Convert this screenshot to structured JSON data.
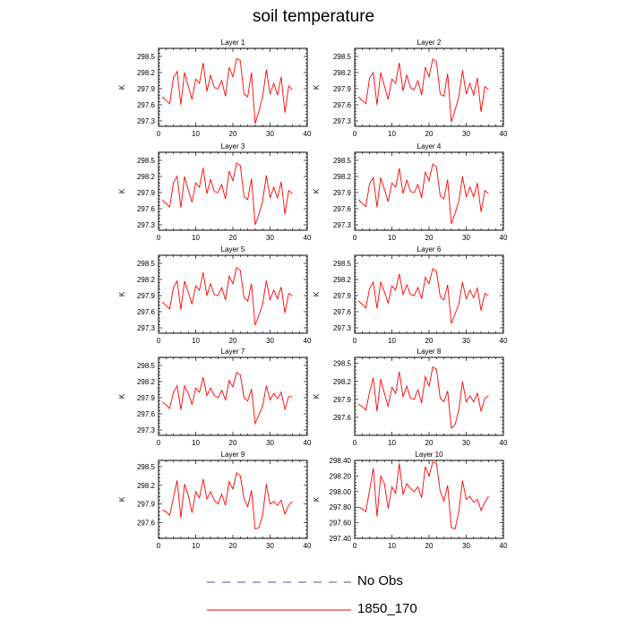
{
  "title": "soil temperature",
  "colors": {
    "model_line": "#ff0000",
    "obs_line": "#5050a0",
    "axis": "#000000"
  },
  "legend": [
    {
      "label": "No Obs",
      "style": "dashed",
      "color": "#5050a0"
    },
    {
      "label": "1850_170",
      "style": "solid",
      "color": "#ff0000"
    }
  ],
  "chart_data": [
    {
      "type": "line",
      "title": "Layer 1",
      "ylabel": "K",
      "xlim": [
        0,
        40
      ],
      "ylim": [
        297.2,
        298.65
      ],
      "xticks": [
        "0",
        "10",
        "20",
        "30",
        "40"
      ],
      "yticks": [
        "297.3",
        "297.6",
        "297.9",
        "298.2",
        "298.5"
      ],
      "series": [
        {
          "x": [
            1,
            2,
            3,
            4,
            5,
            6,
            7,
            8,
            9,
            10,
            11,
            12,
            13,
            14,
            15,
            16,
            17,
            18,
            19,
            20,
            21,
            22,
            23,
            24,
            25,
            26,
            27,
            28,
            29,
            30,
            31,
            32,
            33,
            34,
            35,
            36
          ],
          "values": [
            297.75,
            297.68,
            297.62,
            298.1,
            298.22,
            297.6,
            298.2,
            297.95,
            297.7,
            298.08,
            298.0,
            298.38,
            297.85,
            298.15,
            297.92,
            297.9,
            298.05,
            297.76,
            298.3,
            298.12,
            298.46,
            298.42,
            297.8,
            297.75,
            298.2,
            297.25,
            297.48,
            297.75,
            298.25,
            297.8,
            298.0,
            297.78,
            298.12,
            297.45,
            297.95,
            297.88
          ]
        }
      ]
    },
    {
      "type": "line",
      "title": "Layer 2",
      "ylabel": "K",
      "xlim": [
        0,
        40
      ],
      "ylim": [
        297.2,
        298.65
      ],
      "xticks": [
        "0",
        "10",
        "20",
        "30",
        "40"
      ],
      "yticks": [
        "297.3",
        "297.6",
        "297.9",
        "298.2",
        "298.5"
      ],
      "series": [
        {
          "x": [
            1,
            2,
            3,
            4,
            5,
            6,
            7,
            8,
            9,
            10,
            11,
            12,
            13,
            14,
            15,
            16,
            17,
            18,
            19,
            20,
            21,
            22,
            23,
            24,
            25,
            26,
            27,
            28,
            29,
            30,
            31,
            32,
            33,
            34,
            35,
            36
          ],
          "values": [
            297.75,
            297.68,
            297.62,
            298.1,
            298.2,
            297.6,
            298.2,
            297.95,
            297.7,
            298.08,
            298.0,
            298.38,
            297.86,
            298.15,
            297.92,
            297.88,
            298.05,
            297.78,
            298.3,
            298.12,
            298.45,
            298.4,
            297.8,
            297.76,
            298.18,
            297.28,
            297.5,
            297.75,
            298.24,
            297.8,
            298.0,
            297.78,
            298.1,
            297.47,
            297.94,
            297.88
          ]
        }
      ]
    },
    {
      "type": "line",
      "title": "Layer 3",
      "ylabel": "K",
      "xlim": [
        0,
        40
      ],
      "ylim": [
        297.2,
        298.65
      ],
      "xticks": [
        "0",
        "10",
        "20",
        "30",
        "40"
      ],
      "yticks": [
        "297.3",
        "297.6",
        "297.9",
        "298.2",
        "298.5"
      ],
      "series": [
        {
          "x": [
            1,
            2,
            3,
            4,
            5,
            6,
            7,
            8,
            9,
            10,
            11,
            12,
            13,
            14,
            15,
            16,
            17,
            18,
            19,
            20,
            21,
            22,
            23,
            24,
            25,
            26,
            27,
            28,
            29,
            30,
            31,
            32,
            33,
            34,
            35,
            36
          ],
          "values": [
            297.76,
            297.7,
            297.63,
            298.08,
            298.2,
            297.62,
            298.2,
            297.95,
            297.72,
            298.08,
            298.0,
            298.36,
            297.88,
            298.14,
            297.92,
            297.9,
            298.05,
            297.78,
            298.3,
            298.12,
            298.45,
            298.4,
            297.82,
            297.77,
            298.16,
            297.3,
            297.5,
            297.74,
            298.22,
            297.8,
            298.0,
            297.8,
            298.1,
            297.5,
            297.94,
            297.88
          ]
        }
      ]
    },
    {
      "type": "line",
      "title": "Layer 4",
      "ylabel": "K",
      "xlim": [
        0,
        40
      ],
      "ylim": [
        297.2,
        298.65
      ],
      "xticks": [
        "0",
        "10",
        "20",
        "30",
        "40"
      ],
      "yticks": [
        "297.3",
        "297.6",
        "297.9",
        "298.2",
        "298.5"
      ],
      "series": [
        {
          "x": [
            1,
            2,
            3,
            4,
            5,
            6,
            7,
            8,
            9,
            10,
            11,
            12,
            13,
            14,
            15,
            16,
            17,
            18,
            19,
            20,
            21,
            22,
            23,
            24,
            25,
            26,
            27,
            28,
            29,
            30,
            31,
            32,
            33,
            34,
            35,
            36
          ],
          "values": [
            297.77,
            297.7,
            297.64,
            298.07,
            298.18,
            297.63,
            298.18,
            297.96,
            297.73,
            298.08,
            298.0,
            298.35,
            297.88,
            298.13,
            297.92,
            297.9,
            298.05,
            297.8,
            298.28,
            298.12,
            298.43,
            298.38,
            297.84,
            297.78,
            298.14,
            297.32,
            297.52,
            297.74,
            298.2,
            297.82,
            298.0,
            297.82,
            298.08,
            297.54,
            297.94,
            297.88
          ]
        }
      ]
    },
    {
      "type": "line",
      "title": "Layer 5",
      "ylabel": "K",
      "xlim": [
        0,
        40
      ],
      "ylim": [
        297.2,
        298.65
      ],
      "xticks": [
        "0",
        "10",
        "20",
        "30",
        "40"
      ],
      "yticks": [
        "297.3",
        "297.6",
        "297.9",
        "298.2",
        "298.5"
      ],
      "series": [
        {
          "x": [
            1,
            2,
            3,
            4,
            5,
            6,
            7,
            8,
            9,
            10,
            11,
            12,
            13,
            14,
            15,
            16,
            17,
            18,
            19,
            20,
            21,
            22,
            23,
            24,
            25,
            26,
            27,
            28,
            29,
            30,
            31,
            32,
            33,
            34,
            35,
            36
          ],
          "values": [
            297.78,
            297.72,
            297.65,
            298.05,
            298.17,
            297.64,
            298.17,
            297.96,
            297.74,
            298.08,
            298.0,
            298.33,
            297.9,
            298.12,
            297.92,
            297.9,
            298.05,
            297.82,
            298.26,
            298.12,
            298.42,
            298.37,
            297.86,
            297.8,
            298.12,
            297.35,
            297.54,
            297.74,
            298.18,
            297.82,
            298.0,
            297.84,
            298.06,
            297.58,
            297.94,
            297.9
          ]
        }
      ]
    },
    {
      "type": "line",
      "title": "Layer 6",
      "ylabel": "K",
      "xlim": [
        0,
        40
      ],
      "ylim": [
        297.2,
        298.65
      ],
      "xticks": [
        "0",
        "10",
        "20",
        "30",
        "40"
      ],
      "yticks": [
        "297.3",
        "297.6",
        "297.9",
        "298.2",
        "298.5"
      ],
      "series": [
        {
          "x": [
            1,
            2,
            3,
            4,
            5,
            6,
            7,
            8,
            9,
            10,
            11,
            12,
            13,
            14,
            15,
            16,
            17,
            18,
            19,
            20,
            21,
            22,
            23,
            24,
            25,
            26,
            27,
            28,
            29,
            30,
            31,
            32,
            33,
            34,
            35,
            36
          ],
          "values": [
            297.8,
            297.74,
            297.67,
            298.03,
            298.15,
            297.66,
            298.15,
            297.97,
            297.76,
            298.08,
            298.0,
            298.3,
            297.92,
            298.1,
            297.92,
            297.9,
            298.05,
            297.84,
            298.24,
            298.12,
            298.4,
            298.35,
            297.88,
            297.82,
            298.1,
            297.38,
            297.56,
            297.74,
            298.15,
            297.84,
            298.0,
            297.86,
            298.04,
            297.62,
            297.94,
            297.9
          ]
        }
      ]
    },
    {
      "type": "line",
      "title": "Layer 7",
      "ylabel": "K",
      "xlim": [
        0,
        40
      ],
      "ylim": [
        297.2,
        298.65
      ],
      "xticks": [
        "0",
        "10",
        "20",
        "30",
        "40"
      ],
      "yticks": [
        "297.3",
        "297.6",
        "297.9",
        "298.2",
        "298.5"
      ],
      "series": [
        {
          "x": [
            1,
            2,
            3,
            4,
            5,
            6,
            7,
            8,
            9,
            10,
            11,
            12,
            13,
            14,
            15,
            16,
            17,
            18,
            19,
            20,
            21,
            22,
            23,
            24,
            25,
            26,
            27,
            28,
            29,
            30,
            31,
            32,
            33,
            34,
            35,
            36
          ],
          "values": [
            297.82,
            297.77,
            297.7,
            298.0,
            298.12,
            297.68,
            298.12,
            297.98,
            297.78,
            298.08,
            298.0,
            298.28,
            297.94,
            298.08,
            297.94,
            297.9,
            298.04,
            297.86,
            298.22,
            298.1,
            298.37,
            298.32,
            297.9,
            297.84,
            298.06,
            297.42,
            297.58,
            297.74,
            298.12,
            297.86,
            297.98,
            297.88,
            298.0,
            297.68,
            297.92,
            297.92
          ]
        }
      ]
    },
    {
      "type": "line",
      "title": "Layer 8",
      "ylabel": "K",
      "xlim": [
        0,
        40
      ],
      "ylim": [
        297.3,
        298.6
      ],
      "xticks": [
        "0",
        "10",
        "20",
        "30",
        "40"
      ],
      "yticks": [
        "297.6",
        "297.9",
        "298.2",
        "298.5"
      ],
      "series": [
        {
          "x": [
            1,
            2,
            3,
            4,
            5,
            6,
            7,
            8,
            9,
            10,
            11,
            12,
            13,
            14,
            15,
            16,
            17,
            18,
            19,
            20,
            21,
            22,
            23,
            24,
            25,
            26,
            27,
            28,
            29,
            30,
            31,
            32,
            33,
            34,
            35,
            36
          ],
          "values": [
            297.82,
            297.78,
            297.72,
            298.02,
            298.26,
            297.7,
            298.24,
            298.0,
            297.78,
            298.1,
            298.0,
            298.36,
            297.94,
            298.12,
            297.92,
            297.9,
            298.06,
            297.84,
            298.28,
            298.12,
            298.44,
            298.4,
            297.92,
            297.86,
            298.04,
            297.42,
            297.48,
            297.72,
            298.2,
            297.86,
            297.96,
            297.86,
            298.0,
            297.7,
            297.92,
            297.96
          ]
        }
      ]
    },
    {
      "type": "line",
      "title": "Layer 9",
      "ylabel": "K",
      "xlim": [
        0,
        40
      ],
      "ylim": [
        297.35,
        298.6
      ],
      "xticks": [
        "0",
        "10",
        "20",
        "30",
        "40"
      ],
      "yticks": [
        "297.6",
        "297.9",
        "298.2",
        "298.5"
      ],
      "series": [
        {
          "x": [
            1,
            2,
            3,
            4,
            5,
            6,
            7,
            8,
            9,
            10,
            11,
            12,
            13,
            14,
            15,
            16,
            17,
            18,
            19,
            20,
            21,
            22,
            23,
            24,
            25,
            26,
            27,
            28,
            29,
            30,
            31,
            32,
            33,
            34,
            35,
            36
          ],
          "values": [
            297.8,
            297.78,
            297.72,
            298.0,
            298.28,
            297.68,
            298.22,
            298.04,
            297.76,
            298.1,
            298.0,
            298.3,
            297.98,
            298.1,
            297.96,
            297.9,
            298.06,
            297.88,
            298.26,
            298.14,
            298.4,
            298.35,
            297.98,
            297.86,
            298.12,
            297.5,
            297.52,
            297.72,
            298.22,
            297.9,
            297.94,
            297.88,
            297.96,
            297.74,
            297.88,
            297.94
          ]
        }
      ]
    },
    {
      "type": "line",
      "title": "Layer 10",
      "ylabel": "K",
      "xlim": [
        0,
        40
      ],
      "ylim": [
        297.4,
        298.4
      ],
      "xticks": [
        "0",
        "10",
        "20",
        "30",
        "40"
      ],
      "yticks": [
        "297.40",
        "297.60",
        "297.80",
        "298.00",
        "298.20",
        "298.40"
      ],
      "series": [
        {
          "x": [
            1,
            2,
            3,
            4,
            5,
            6,
            7,
            8,
            9,
            10,
            11,
            12,
            13,
            14,
            15,
            16,
            17,
            18,
            19,
            20,
            21,
            22,
            23,
            24,
            25,
            26,
            27,
            28,
            29,
            30,
            31,
            32,
            33,
            34,
            35,
            36
          ],
          "values": [
            297.8,
            297.78,
            297.74,
            298.02,
            298.3,
            297.68,
            298.2,
            298.1,
            297.78,
            298.06,
            297.98,
            298.36,
            297.96,
            298.1,
            298.04,
            298.0,
            298.06,
            297.92,
            298.32,
            298.2,
            298.38,
            298.36,
            298.0,
            297.88,
            298.08,
            297.54,
            297.52,
            297.74,
            298.14,
            297.9,
            297.94,
            297.86,
            297.9,
            297.76,
            297.86,
            297.94
          ]
        }
      ]
    }
  ]
}
